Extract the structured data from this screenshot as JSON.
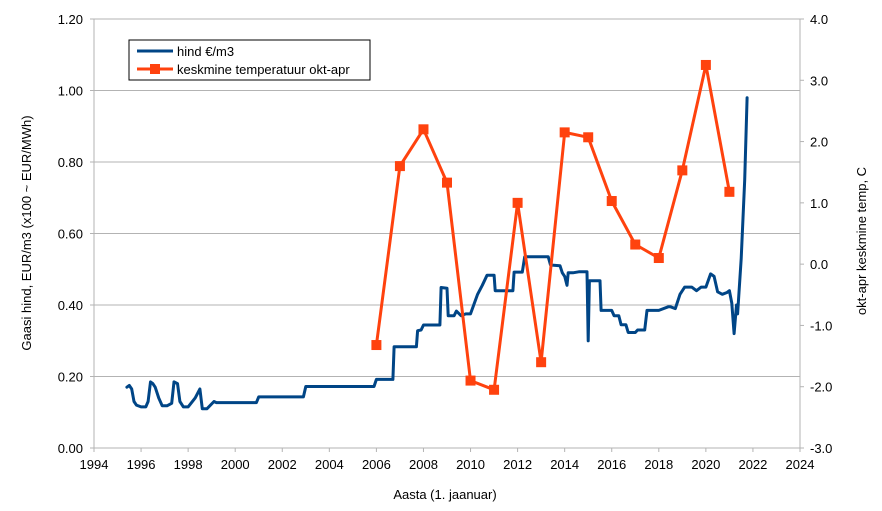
{
  "chart_data": {
    "type": "line",
    "xlabel": "Aasta (1. jaanuar)",
    "ylabel_left": "Gaasi hind, EUR/m3 (x100 ~ EUR/MWh)",
    "ylabel_right": "okt-apr keskmine temp, C",
    "xlim": [
      1994,
      2024
    ],
    "x_ticks": [
      1994,
      1996,
      1998,
      2000,
      2002,
      2004,
      2006,
      2008,
      2010,
      2012,
      2014,
      2016,
      2018,
      2020,
      2022,
      2024
    ],
    "x_tick_labels": [
      "1994",
      "1996",
      "1998",
      "2000",
      "2002",
      "2004",
      "2006",
      "2008",
      "2010",
      "2012",
      "2014",
      "2016",
      "2018",
      "2020",
      "2022",
      "2024"
    ],
    "ylim_left": [
      0,
      1.2
    ],
    "y_left_ticks": [
      0,
      0.2,
      0.4,
      0.6,
      0.8,
      1.0,
      1.2
    ],
    "y_left_tick_labels": [
      "0.00",
      "0.20",
      "0.40",
      "0.60",
      "0.80",
      "1.00",
      "1.20"
    ],
    "ylim_right": [
      -3,
      4
    ],
    "y_right_ticks": [
      -3,
      -2,
      -1,
      0,
      1,
      2,
      3,
      4
    ],
    "y_right_tick_labels": [
      "-3.0",
      "-2.0",
      "-1.0",
      "0.0",
      "1.0",
      "2.0",
      "3.0",
      "4.0"
    ],
    "grid": "horizontal",
    "legend_position": "top-left",
    "series": [
      {
        "name": "hind €/m3",
        "axis": "left",
        "color": "#004586",
        "marker": "none",
        "x": [
          1995.4,
          1995.5,
          1995.6,
          1995.7,
          1995.8,
          1996.0,
          1996.2,
          1996.3,
          1996.4,
          1996.5,
          1996.6,
          1996.75,
          1996.9,
          1997.1,
          1997.3,
          1997.4,
          1997.55,
          1997.65,
          1997.8,
          1998.0,
          1998.3,
          1998.5,
          1998.6,
          1998.8,
          1999.1,
          1999.2,
          2000.9,
          2001.0,
          2002.9,
          2003.0,
          2005.9,
          2006.0,
          2006.7,
          2006.75,
          2007.7,
          2007.75,
          2007.9,
          2008.0,
          2008.7,
          2008.75,
          2009.0,
          2009.05,
          2009.3,
          2009.4,
          2009.6,
          2009.8,
          2010.0,
          2010.3,
          2010.5,
          2010.7,
          2011.0,
          2011.05,
          2011.8,
          2011.85,
          2012.2,
          2012.3,
          2012.9,
          2013.3,
          2013.4,
          2013.8,
          2013.9,
          2014.0,
          2014.1,
          2014.15,
          2014.3,
          2014.35,
          2014.6,
          2014.95,
          2015.0,
          2015.05,
          2015.1,
          2015.5,
          2015.55,
          2016.0,
          2016.1,
          2016.3,
          2016.4,
          2016.6,
          2016.7,
          2017.0,
          2017.1,
          2017.4,
          2017.5,
          2017.8,
          2018.0,
          2018.4,
          2018.5,
          2018.7,
          2018.9,
          2019.1,
          2019.4,
          2019.6,
          2019.8,
          2020.0,
          2020.2,
          2020.35,
          2020.5,
          2020.7,
          2020.9,
          2021.0,
          2021.1,
          2021.2,
          2021.3,
          2021.35,
          2021.5,
          2021.65,
          2021.75
        ],
        "values": [
          0.17,
          0.175,
          0.165,
          0.13,
          0.12,
          0.115,
          0.115,
          0.13,
          0.185,
          0.18,
          0.17,
          0.14,
          0.118,
          0.118,
          0.125,
          0.185,
          0.18,
          0.13,
          0.115,
          0.115,
          0.14,
          0.165,
          0.11,
          0.11,
          0.13,
          0.127,
          0.127,
          0.143,
          0.143,
          0.172,
          0.172,
          0.192,
          0.192,
          0.283,
          0.283,
          0.328,
          0.33,
          0.344,
          0.344,
          0.449,
          0.447,
          0.37,
          0.37,
          0.383,
          0.37,
          0.375,
          0.375,
          0.43,
          0.455,
          0.483,
          0.483,
          0.44,
          0.44,
          0.492,
          0.492,
          0.535,
          0.535,
          0.535,
          0.512,
          0.51,
          0.49,
          0.48,
          0.455,
          0.49,
          0.49,
          0.49,
          0.493,
          0.493,
          0.3,
          0.468,
          0.468,
          0.468,
          0.385,
          0.385,
          0.37,
          0.37,
          0.345,
          0.345,
          0.323,
          0.323,
          0.33,
          0.33,
          0.385,
          0.385,
          0.385,
          0.395,
          0.395,
          0.39,
          0.43,
          0.45,
          0.45,
          0.44,
          0.45,
          0.45,
          0.487,
          0.48,
          0.437,
          0.43,
          0.435,
          0.44,
          0.405,
          0.32,
          0.4,
          0.375,
          0.53,
          0.75,
          0.98
        ]
      },
      {
        "name": "keskmine temperatuur okt-apr",
        "axis": "right",
        "color": "#ff420e",
        "marker": "square",
        "x": [
          2006,
          2007,
          2008,
          2009,
          2010,
          2011,
          2012,
          2013,
          2014,
          2015,
          2016,
          2017,
          2018,
          2019,
          2020,
          2021
        ],
        "values": [
          -1.32,
          1.6,
          2.2,
          1.33,
          -1.9,
          -2.05,
          1.0,
          -1.6,
          2.15,
          2.07,
          1.03,
          0.32,
          0.1,
          1.53,
          3.25,
          1.18
        ]
      }
    ]
  }
}
